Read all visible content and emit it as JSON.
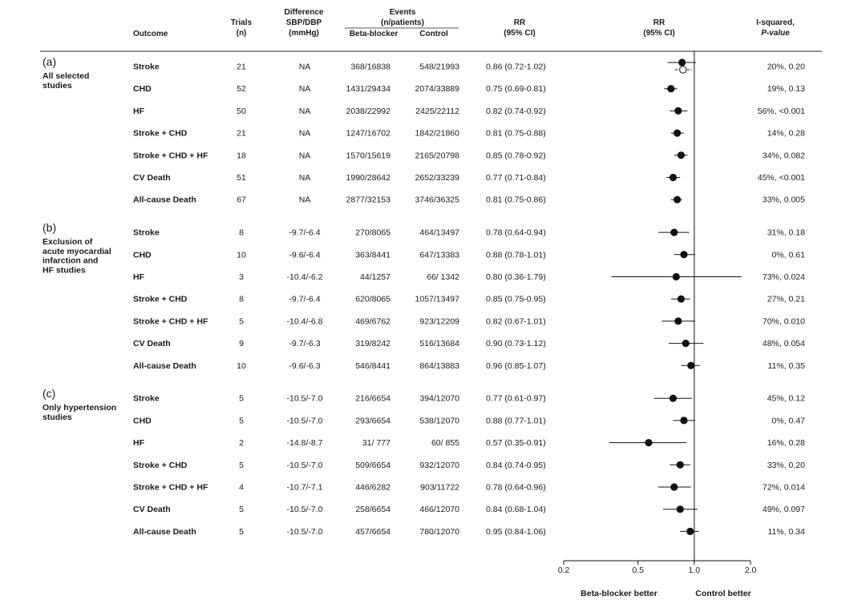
{
  "header": {
    "outcome": "Outcome",
    "trials": [
      "Trials",
      "(n)"
    ],
    "difference": [
      "Difference",
      "SBP/DBP",
      "(mmHg)"
    ],
    "events": [
      "Events",
      "(n/patients)"
    ],
    "bb": "Beta-blocker",
    "control": "Control",
    "rr_text": [
      "RR",
      "(95% CI)"
    ],
    "rr_plot": [
      "RR",
      "(95% CI)"
    ],
    "isq": [
      "I-squared,",
      "P-value"
    ]
  },
  "chart_data": {
    "type": "forest",
    "x_scale": "log",
    "xlim": [
      0.2,
      2.0
    ],
    "x_ticks": [
      {
        "v": 0.2,
        "label": "0.2"
      },
      {
        "v": 0.5,
        "label": "0.5"
      },
      {
        "v": 1.0,
        "label": "1.0"
      },
      {
        "v": 2.0,
        "label": "2.0"
      }
    ],
    "reference_line": 1.0,
    "x_captions": {
      "left": "Beta-blocker better",
      "right": "Control better"
    },
    "groups": [
      {
        "letter": "(a)",
        "label": [
          "All selected",
          "studies"
        ],
        "rows": [
          {
            "outcome": "Stroke",
            "trials": "21",
            "diff": "NA",
            "bb": "368/16838",
            "ctrl": "548/21993",
            "rr_text": "0.86 (0.72-1.02)",
            "rr": 0.86,
            "lo": 0.72,
            "hi": 1.02,
            "isq": "20%, 0.20",
            "alt": {
              "rr": 0.87,
              "lo": 0.79,
              "hi": 0.97
            }
          },
          {
            "outcome": "CHD",
            "trials": "52",
            "diff": "NA",
            "bb": "1431/29434",
            "ctrl": "2074/33889",
            "rr_text": "0.75 (0.69-0.81)",
            "rr": 0.75,
            "lo": 0.69,
            "hi": 0.81,
            "isq": "19%, 0.13"
          },
          {
            "outcome": "HF",
            "trials": "50",
            "diff": "NA",
            "bb": "2038/22992",
            "ctrl": "2425/22112",
            "rr_text": "0.82 (0.74-0.92)",
            "rr": 0.82,
            "lo": 0.74,
            "hi": 0.92,
            "isq": "56%, <0.001"
          },
          {
            "outcome": "Stroke + CHD",
            "trials": "21",
            "diff": "NA",
            "bb": "1247/16702",
            "ctrl": "1842/21860",
            "rr_text": "0.81 (0.75-0.88)",
            "rr": 0.81,
            "lo": 0.75,
            "hi": 0.88,
            "isq": "14%, 0.28"
          },
          {
            "outcome": "Stroke + CHD + HF",
            "trials": "18",
            "diff": "NA",
            "bb": "1570/15619",
            "ctrl": "2165/20798",
            "rr_text": "0.85 (0.78-0.92)",
            "rr": 0.85,
            "lo": 0.78,
            "hi": 0.92,
            "isq": "34%, 0.082"
          },
          {
            "outcome": "CV Death",
            "trials": "51",
            "diff": "NA",
            "bb": "1990/28642",
            "ctrl": "2652/33239",
            "rr_text": "0.77 (0.71-0.84)",
            "rr": 0.77,
            "lo": 0.71,
            "hi": 0.84,
            "isq": "45%, <0.001"
          },
          {
            "outcome": "All-cause Death",
            "trials": "67",
            "diff": "NA",
            "bb": "2877/32153",
            "ctrl": "3746/36325",
            "rr_text": "0.81 (0.75-0.86)",
            "rr": 0.81,
            "lo": 0.75,
            "hi": 0.86,
            "isq": "33%, 0.005"
          }
        ]
      },
      {
        "letter": "(b)",
        "label": [
          "Exclusion of",
          "acute myocardial",
          "infarction and",
          "HF studies"
        ],
        "rows": [
          {
            "outcome": "Stroke",
            "trials": "8",
            "diff": "-9.7/-6.4",
            "bb": "270/8065",
            "ctrl": "464/13497",
            "rr_text": "0.78 (0.64-0.94)",
            "rr": 0.78,
            "lo": 0.64,
            "hi": 0.94,
            "isq": "31%, 0.18"
          },
          {
            "outcome": "CHD",
            "trials": "10",
            "diff": "-9.6/-6.4",
            "bb": "363/8441",
            "ctrl": "647/13383",
            "rr_text": "0.88 (0.78-1.01)",
            "rr": 0.88,
            "lo": 0.78,
            "hi": 1.01,
            "isq": "0%, 0.61"
          },
          {
            "outcome": "HF",
            "trials": "3",
            "diff": "-10.4/-6.2",
            "bb": "44/1257",
            "ctrl": "66/  1342",
            "rr_text": "0.80 (0.36-1.79)",
            "rr": 0.8,
            "lo": 0.36,
            "hi": 1.79,
            "isq": "73%, 0.024"
          },
          {
            "outcome": "Stroke + CHD",
            "trials": "8",
            "diff": "-9.7/-6.4",
            "bb": "620/8065",
            "ctrl": "1057/13497",
            "rr_text": "0.85 (0.75-0.95)",
            "rr": 0.85,
            "lo": 0.75,
            "hi": 0.95,
            "isq": "27%, 0.21"
          },
          {
            "outcome": "Stroke + CHD + HF",
            "trials": "5",
            "diff": "-10.4/-6.8",
            "bb": "469/6762",
            "ctrl": "923/12209",
            "rr_text": "0.82 (0.67-1.01)",
            "rr": 0.82,
            "lo": 0.67,
            "hi": 1.01,
            "isq": "70%, 0.010"
          },
          {
            "outcome": "CV Death",
            "trials": "9",
            "diff": "-9.7/-6.3",
            "bb": "319/8242",
            "ctrl": "516/13684",
            "rr_text": "0.90 (0.73-1.12)",
            "rr": 0.9,
            "lo": 0.73,
            "hi": 1.12,
            "isq": "48%, 0.054"
          },
          {
            "outcome": "All-cause Death",
            "trials": "10",
            "diff": "-9.6/-6.3",
            "bb": "546/8441",
            "ctrl": "864/13883",
            "rr_text": "0.96 (0.85-1.07)",
            "rr": 0.96,
            "lo": 0.85,
            "hi": 1.07,
            "isq": "11%, 0.35"
          }
        ]
      },
      {
        "letter": "(c)",
        "label": [
          "Only hypertension",
          "studies"
        ],
        "rows": [
          {
            "outcome": "Stroke",
            "trials": "5",
            "diff": "-10.5/-7.0",
            "bb": "216/6654",
            "ctrl": "394/12070",
            "rr_text": "0.77 (0.61-0.97)",
            "rr": 0.77,
            "lo": 0.61,
            "hi": 0.97,
            "isq": "45%, 0.12"
          },
          {
            "outcome": "CHD",
            "trials": "5",
            "diff": "-10.5/-7.0",
            "bb": "293/6654",
            "ctrl": "538/12070",
            "rr_text": "0.88 (0.77-1.01)",
            "rr": 0.88,
            "lo": 0.77,
            "hi": 1.01,
            "isq": "0%, 0.47"
          },
          {
            "outcome": "HF",
            "trials": "2",
            "diff": "-14.8/-8.7",
            "bb": "31/  777",
            "ctrl": "60/  855",
            "rr_text": "0.57 (0.35-0.91)",
            "rr": 0.57,
            "lo": 0.35,
            "hi": 0.91,
            "isq": "16%, 0.28"
          },
          {
            "outcome": "Stroke + CHD",
            "trials": "5",
            "diff": "-10.5/-7.0",
            "bb": "509/6654",
            "ctrl": "932/12070",
            "rr_text": "0.84 (0.74-0.95)",
            "rr": 0.84,
            "lo": 0.74,
            "hi": 0.95,
            "isq": "33%, 0.20"
          },
          {
            "outcome": "Stroke + CHD + HF",
            "trials": "4",
            "diff": "-10.7/-7.1",
            "bb": "446/6282",
            "ctrl": "903/11722",
            "rr_text": "0.78 (0.64-0.96)",
            "rr": 0.78,
            "lo": 0.64,
            "hi": 0.96,
            "isq": "72%, 0.014"
          },
          {
            "outcome": "CV Death",
            "trials": "5",
            "diff": "-10.5/-7.0",
            "bb": "258/6654",
            "ctrl": "466/12070",
            "rr_text": "0.84 (0.68-1.04)",
            "rr": 0.84,
            "lo": 0.68,
            "hi": 1.04,
            "isq": "49%, 0.097"
          },
          {
            "outcome": "All-cause Death",
            "trials": "5",
            "diff": "-10.5/-7.0",
            "bb": "457/6654",
            "ctrl": "780/12070",
            "rr_text": "0.95 (0.84-1.06)",
            "rr": 0.95,
            "lo": 0.84,
            "hi": 1.06,
            "isq": "11%, 0.34"
          }
        ]
      }
    ]
  }
}
